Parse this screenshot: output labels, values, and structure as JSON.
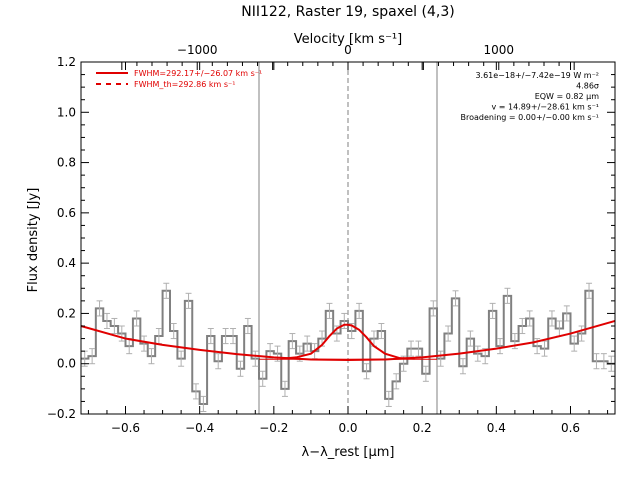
{
  "chart_data": {
    "type": "line",
    "title": "NII122, Raster 19, spaxel (4,3)",
    "xlabel": "λ−λ_rest [μm]",
    "ylabel": "Flux density [Jy]",
    "top_axis_label": "Velocity [km s⁻¹]",
    "xlim": [
      -0.72,
      0.72
    ],
    "ylim": [
      -0.2,
      1.2
    ],
    "x_ticks": [
      -0.6,
      -0.4,
      -0.2,
      0.0,
      0.2,
      0.4,
      0.6
    ],
    "x_tick_labels": [
      "−0.6",
      "−0.4",
      "−0.2",
      "0.0",
      "0.2",
      "0.4",
      "0.6"
    ],
    "y_ticks": [
      -0.2,
      0.0,
      0.2,
      0.4,
      0.6,
      0.8,
      1.0,
      1.2
    ],
    "y_tick_labels": [
      "−0.2",
      "0.0",
      "0.2",
      "0.4",
      "0.6",
      "0.8",
      "1.0",
      "1.2"
    ],
    "top_ticks": [
      -1000,
      0,
      1000
    ],
    "top_tick_labels": [
      "−1000",
      "0",
      "1000"
    ],
    "legend": [
      {
        "label": "FWHM=292.17+/−26.07 km s⁻¹",
        "style": "solid",
        "color": "#e00000"
      },
      {
        "label": "FWHM_th=292.86 km s⁻¹",
        "style": "dashed",
        "color": "#e00000"
      }
    ],
    "annotations": [
      "3.61e−18+/−7.42e−19 W m⁻²",
      "4.86σ",
      "EQW = 0.82 μm",
      "v = 14.89+/−28.61 km s⁻¹",
      "Broadening = 0.00+/−0.00 km s⁻¹"
    ],
    "vertical_lines": [
      -0.24,
      0.24
    ],
    "center_line": 0.0,
    "series": [
      {
        "kind": "spectrum-histogram",
        "color": "#808080",
        "x": [
          -0.71,
          -0.69,
          -0.67,
          -0.65,
          -0.63,
          -0.61,
          -0.59,
          -0.57,
          -0.55,
          -0.53,
          -0.51,
          -0.49,
          -0.47,
          -0.45,
          -0.43,
          -0.41,
          -0.39,
          -0.37,
          -0.35,
          -0.33,
          -0.31,
          -0.29,
          -0.27,
          -0.25,
          -0.23,
          -0.21,
          -0.19,
          -0.17,
          -0.15,
          -0.13,
          -0.11,
          -0.09,
          -0.07,
          -0.05,
          -0.03,
          -0.01,
          0.01,
          0.03,
          0.05,
          0.07,
          0.09,
          0.11,
          0.13,
          0.15,
          0.17,
          0.19,
          0.21,
          0.23,
          0.25,
          0.27,
          0.29,
          0.31,
          0.33,
          0.35,
          0.37,
          0.39,
          0.41,
          0.43,
          0.45,
          0.47,
          0.49,
          0.51,
          0.53,
          0.55,
          0.57,
          0.59,
          0.61,
          0.63,
          0.65,
          0.67,
          0.69,
          0.71
        ],
        "y": [
          0.02,
          0.03,
          0.22,
          0.17,
          0.15,
          0.12,
          0.07,
          0.18,
          0.08,
          0.03,
          0.11,
          0.29,
          0.13,
          0.02,
          0.25,
          -0.11,
          -0.16,
          0.11,
          0.01,
          0.11,
          0.11,
          -0.02,
          0.15,
          0.02,
          -0.06,
          0.05,
          0.04,
          -0.1,
          0.09,
          0.04,
          0.08,
          0.05,
          0.1,
          0.21,
          0.12,
          0.17,
          0.13,
          0.21,
          -0.03,
          0.1,
          0.13,
          -0.14,
          -0.07,
          0.0,
          0.06,
          0.06,
          -0.04,
          0.22,
          0.02,
          0.12,
          0.26,
          -0.01,
          0.1,
          0.04,
          0.03,
          0.21,
          0.07,
          0.27,
          0.09,
          0.15,
          0.18,
          0.07,
          0.06,
          0.18,
          0.14,
          0.2,
          0.08,
          0.12,
          0.29,
          0.01,
          0.01,
          0.0
        ],
        "error": [
          0.03,
          0.03,
          0.03,
          0.03,
          0.03,
          0.03,
          0.03,
          0.03,
          0.03,
          0.03,
          0.03,
          0.03,
          0.03,
          0.03,
          0.03,
          0.03,
          0.03,
          0.03,
          0.03,
          0.03,
          0.03,
          0.03,
          0.03,
          0.03,
          0.03,
          0.03,
          0.03,
          0.03,
          0.03,
          0.03,
          0.03,
          0.03,
          0.03,
          0.03,
          0.03,
          0.03,
          0.03,
          0.03,
          0.03,
          0.03,
          0.03,
          0.03,
          0.03,
          0.03,
          0.03,
          0.03,
          0.03,
          0.03,
          0.03,
          0.03,
          0.03,
          0.03,
          0.03,
          0.03,
          0.03,
          0.03,
          0.03,
          0.03,
          0.03,
          0.03,
          0.03,
          0.03,
          0.03,
          0.03,
          0.03,
          0.03,
          0.03,
          0.03,
          0.03,
          0.03,
          0.03,
          0.03
        ]
      },
      {
        "kind": "continuum-fit",
        "color": "#e00000",
        "x": [
          -0.72,
          -0.6,
          -0.5,
          -0.4,
          -0.3,
          -0.2,
          -0.1,
          0.0,
          0.1,
          0.2,
          0.3,
          0.4,
          0.5,
          0.6,
          0.72
        ],
        "y": [
          0.15,
          0.1,
          0.075,
          0.055,
          0.038,
          0.025,
          0.017,
          0.015,
          0.017,
          0.025,
          0.04,
          0.06,
          0.085,
          0.12,
          0.17
        ]
      },
      {
        "kind": "line-fit",
        "color": "#e00000",
        "x": [
          -0.18,
          -0.14,
          -0.1,
          -0.07,
          -0.05,
          -0.03,
          -0.01,
          0.0,
          0.01,
          0.03,
          0.05,
          0.07,
          0.1,
          0.14,
          0.18
        ],
        "y": [
          0.02,
          0.025,
          0.04,
          0.075,
          0.11,
          0.14,
          0.155,
          0.155,
          0.152,
          0.135,
          0.105,
          0.07,
          0.04,
          0.022,
          0.02
        ]
      },
      {
        "kind": "baseline-segment",
        "color": "#e00000",
        "x": [
          -0.24,
          0.24
        ],
        "y": [
          0.018,
          0.018
        ]
      }
    ]
  }
}
